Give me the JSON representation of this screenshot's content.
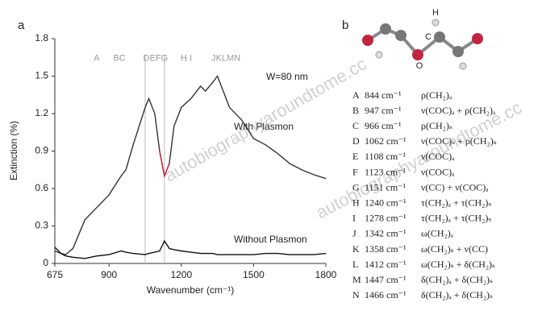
{
  "chart_data": {
    "type": "line",
    "panel_label": "a",
    "xlabel": "Wavenumber (cm⁻¹)",
    "ylabel": "Extinction (%)",
    "x": [
      675,
      700,
      720,
      750,
      800,
      850,
      900,
      950,
      970,
      1000,
      1050,
      1065,
      1090,
      1110,
      1130,
      1150,
      1170,
      1200,
      1240,
      1280,
      1300,
      1330,
      1350,
      1380,
      1400,
      1450,
      1500,
      1550,
      1600,
      1650,
      1700,
      1750,
      1800
    ],
    "series": [
      {
        "name": "With Plasmon",
        "color": "#333333",
        "values": [
          0.1,
          0.08,
          0.07,
          0.12,
          0.35,
          0.45,
          0.55,
          0.7,
          0.75,
          0.95,
          1.25,
          1.32,
          1.2,
          0.9,
          0.7,
          0.8,
          1.1,
          1.25,
          1.32,
          1.42,
          1.38,
          1.45,
          1.5,
          1.35,
          1.25,
          1.15,
          1.0,
          0.95,
          0.88,
          0.8,
          0.75,
          0.71,
          0.68
        ]
      },
      {
        "color": "#d0213a",
        "values": [
          null,
          null,
          null,
          null,
          null,
          null,
          null,
          null,
          null,
          null,
          null,
          null,
          null,
          0.9,
          0.7,
          0.8,
          null,
          null,
          null,
          null,
          null,
          null,
          null,
          null,
          null,
          null,
          null,
          null,
          null,
          null,
          null,
          null,
          null
        ]
      },
      {
        "name": "Without Plasmon",
        "color": "#111111",
        "values": [
          0.13,
          0.08,
          0.06,
          0.05,
          0.04,
          0.06,
          0.07,
          0.1,
          0.09,
          0.08,
          0.07,
          0.08,
          0.09,
          0.1,
          0.18,
          0.12,
          0.11,
          0.1,
          0.09,
          0.08,
          0.08,
          0.08,
          0.07,
          0.07,
          0.07,
          0.07,
          0.07,
          0.08,
          0.08,
          0.07,
          0.07,
          0.07,
          0.08
        ]
      }
    ],
    "xlim": [
      675,
      1800
    ],
    "xticks": [
      675,
      900,
      1200,
      1500,
      1800
    ],
    "ylim": [
      0,
      1.8
    ],
    "yticks": [
      0,
      0.3,
      0.6,
      0.9,
      1.2,
      1.5,
      1.8
    ],
    "vlines": [
      1050,
      1130
    ],
    "peak_labels": [
      {
        "text": "A",
        "x": 849
      },
      {
        "text": "BC",
        "x": 943
      },
      {
        "text": "DEFG",
        "x": 1093
      },
      {
        "text": "H I",
        "x": 1221
      },
      {
        "text": "JKLMN",
        "x": 1385
      }
    ],
    "peak_label_y": 1.64,
    "annotation": "W=80 nm"
  },
  "panel_b": {
    "panel_label": "b",
    "atoms": {
      "h": "H",
      "c": "C",
      "o": "O"
    },
    "rows": [
      [
        "A",
        "844 cm⁻¹",
        "ρ(CH₂)ₐ"
      ],
      [
        "B",
        "947 cm⁻¹",
        "ν(COC)ₐ + ρ(CH₂)ₐ"
      ],
      [
        "C",
        "966 cm⁻¹",
        "ρ(CH₂)ₛ"
      ],
      [
        "D",
        "1062 cm⁻¹",
        "ν(COC)ₛ + ρ(CH₂)ₛ"
      ],
      [
        "E",
        "1108 cm⁻¹",
        "ν(COC)ₐ"
      ],
      [
        "F",
        "1123 cm⁻¹",
        "ν(COC)ₐ"
      ],
      [
        "G",
        "1151 cm⁻¹",
        "ν(CC) + ν(COC)ₐ"
      ],
      [
        "H",
        "1240 cm⁻¹",
        "τ(CH₂)ₐ + τ(CH₂)ₛ"
      ],
      [
        "I",
        "1278 cm⁻¹",
        "τ(CH₂)ₐ + τ(CH₂)ₛ"
      ],
      [
        "J",
        "1342 cm⁻¹",
        "ω(CH₂)ₐ"
      ],
      [
        "K",
        "1358 cm⁻¹",
        "ω(CH₂)ₛ + ν(CC)"
      ],
      [
        "L",
        "1412 cm⁻¹",
        "ω(CH₂)ₛ + δ(CH₂)ₛ"
      ],
      [
        "M",
        "1447 cm⁻¹",
        "δ(CH₂)ₐ + δ(CH₂)ₛ"
      ],
      [
        "N",
        "1466 cm⁻¹",
        "δ(CH₂)ₐ + δ(CH₂)ₛ"
      ]
    ]
  },
  "watermarks": [
    "autobiographyaroundtome.cc",
    "autobiographyaroundtome.cc"
  ]
}
